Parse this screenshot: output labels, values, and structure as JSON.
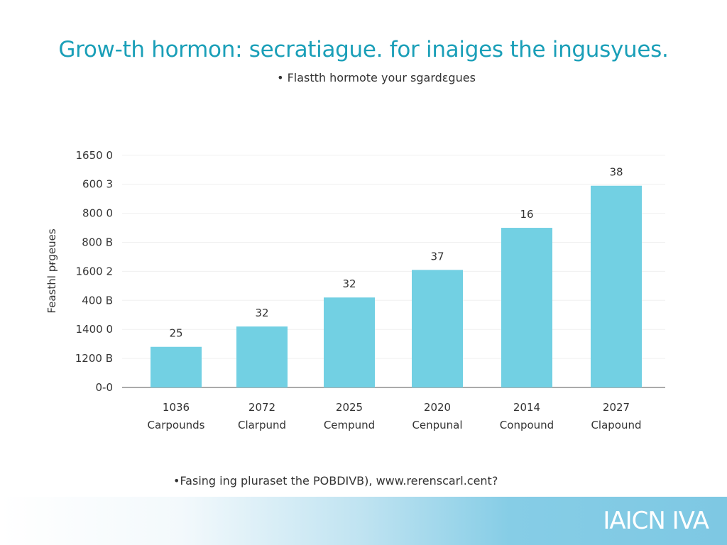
{
  "title": "Grow-th  hormon: secratiague. for inaiges the ingusyues.",
  "subtitle": "• Flastth hormote your sgardɛgues",
  "footer_note": "•Fasing ing pluraset the POBDIVB), www.rerenscarl.cent?",
  "brand": "IAICN IVA",
  "chart_data": {
    "type": "bar",
    "title": "Grow-th  hormon: secratiague. for inaiges the ingusyues.",
    "ylabel": "Feasthl pɍɡeues",
    "xlabel": "",
    "y_tick_labels": [
      "0-0",
      "1200 B",
      "1400 0",
      "400 B",
      "1600 2",
      "800 B",
      "800 0",
      "600 3",
      "1650 0"
    ],
    "categories": [
      {
        "year": "1036",
        "name": "Carpounds"
      },
      {
        "year": "2072",
        "name": "Clarpund"
      },
      {
        "year": "2025",
        "name": "Cempund"
      },
      {
        "year": "2020",
        "name": "Cenpunal"
      },
      {
        "year": "2014",
        "name": "Conpound"
      },
      {
        "year": "2027",
        "name": "Clapound"
      }
    ],
    "data_labels": [
      "25",
      "32",
      "32",
      "37",
      "16",
      "38"
    ],
    "bar_levels_in_tick_steps": [
      1.4,
      2.1,
      3.1,
      4.05,
      5.5,
      6.95
    ],
    "grid": true,
    "legend": "none",
    "bar_color": "#72d0e3",
    "title_color": "#1a9fb8"
  }
}
